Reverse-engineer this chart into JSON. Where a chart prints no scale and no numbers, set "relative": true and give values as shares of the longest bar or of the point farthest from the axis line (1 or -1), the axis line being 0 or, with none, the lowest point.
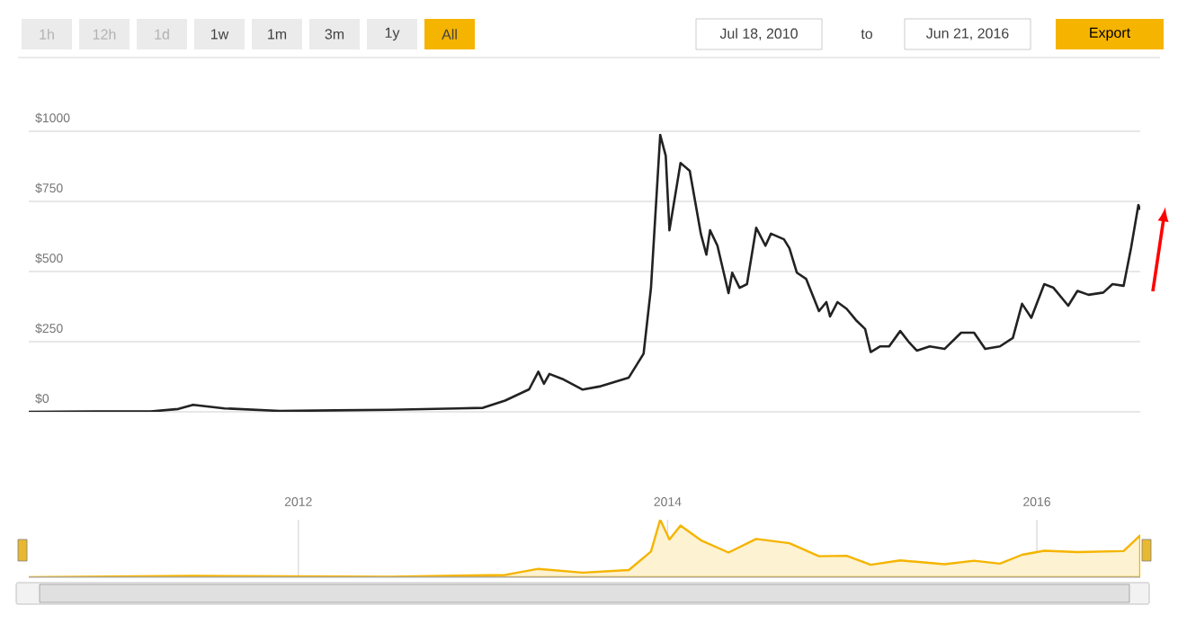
{
  "chart_data": [
    {
      "type": "line",
      "color": "#222222",
      "xlim": [
        2010.54,
        2016.56
      ],
      "ylim": [
        0,
        1000
      ],
      "yticks": [
        {
          "value": 0,
          "label": "$0"
        },
        {
          "value": 250,
          "label": "$250"
        },
        {
          "value": 500,
          "label": "$500"
        },
        {
          "value": 750,
          "label": "$750"
        },
        {
          "value": 1000,
          "label": "$1000"
        }
      ],
      "grid": "y",
      "tick_labels": "y",
      "x": [
        2010.54,
        2010.9,
        2011.2,
        2011.35,
        2011.43,
        2011.6,
        2011.9,
        2012.2,
        2012.5,
        2012.8,
        2013.0,
        2013.12,
        2013.25,
        2013.3,
        2013.33,
        2013.36,
        2013.43,
        2013.54,
        2013.63,
        2013.79,
        2013.87,
        2013.91,
        2013.96,
        2013.99,
        2014.01,
        2014.07,
        2014.12,
        2014.18,
        2014.21,
        2014.23,
        2014.27,
        2014.33,
        2014.35,
        2014.39,
        2014.43,
        2014.48,
        2014.53,
        2014.56,
        2014.63,
        2014.66,
        2014.7,
        2014.75,
        2014.82,
        2014.86,
        2014.88,
        2014.92,
        2014.97,
        2015.02,
        2015.07,
        2015.1,
        2015.15,
        2015.2,
        2015.26,
        2015.31,
        2015.35,
        2015.42,
        2015.5,
        2015.59,
        2015.66,
        2015.72,
        2015.8,
        2015.87,
        2015.92,
        2015.97,
        2016.04,
        2016.09,
        2016.17,
        2016.22,
        2016.28,
        2016.36,
        2016.41,
        2016.47,
        2016.51,
        2016.55,
        2016.56
      ],
      "values": [
        0,
        1,
        1,
        10,
        25,
        12,
        3,
        5,
        7,
        11,
        14,
        40,
        80,
        143,
        100,
        135,
        117,
        79,
        90,
        122,
        207,
        442,
        987,
        912,
        647,
        887,
        859,
        635,
        560,
        647,
        592,
        423,
        496,
        442,
        455,
        656,
        592,
        635,
        615,
        583,
        496,
        474,
        359,
        391,
        340,
        391,
        367,
        327,
        295,
        213,
        233,
        233,
        288,
        246,
        218,
        233,
        224,
        282,
        282,
        224,
        233,
        263,
        385,
        335,
        455,
        442,
        378,
        431,
        417,
        425,
        455,
        449,
        583,
        737,
        720
      ],
      "annotations": [
        "1h",
        "12h",
        "1d",
        "1w",
        "1m",
        "3m",
        "1y",
        "All",
        "Jul 18, 2010",
        "to",
        "Jun 21, 2016",
        "Export"
      ]
    },
    {
      "type": "area",
      "relative": true,
      "color": "#f5b400",
      "xlim": [
        2010.54,
        2016.56
      ],
      "xticks": [
        2012,
        2014,
        2016
      ],
      "grid": "x",
      "tick_labels": "x",
      "x": [
        2010.54,
        2011.43,
        2012.5,
        2013.12,
        2013.3,
        2013.54,
        2013.79,
        2013.91,
        2013.96,
        2014.01,
        2014.07,
        2014.18,
        2014.33,
        2014.48,
        2014.66,
        2014.82,
        2014.97,
        2015.1,
        2015.26,
        2015.5,
        2015.66,
        2015.8,
        2015.92,
        2016.04,
        2016.22,
        2016.47,
        2016.56
      ],
      "values": [
        0,
        0.025,
        0.007,
        0.04,
        0.145,
        0.08,
        0.124,
        0.448,
        1,
        0.656,
        0.899,
        0.643,
        0.429,
        0.665,
        0.591,
        0.364,
        0.372,
        0.216,
        0.292,
        0.227,
        0.286,
        0.236,
        0.39,
        0.461,
        0.437,
        0.455,
        0.73
      ]
    }
  ]
}
